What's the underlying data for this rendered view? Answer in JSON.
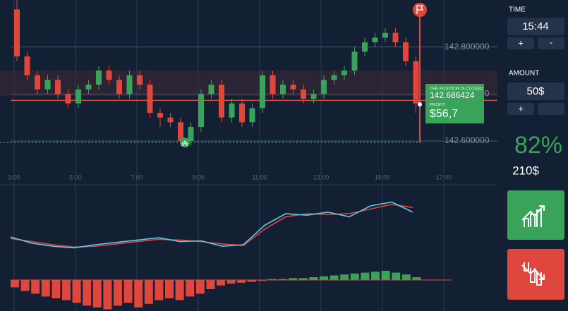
{
  "chart": {
    "type": "candlestick",
    "ylim": [
      142.54,
      142.9
    ],
    "yticks": [
      {
        "value": 142.8,
        "label": "142.800000"
      },
      {
        "value": 142.7,
        "label": "142.700000"
      },
      {
        "value": 142.6,
        "label": "142.600000"
      }
    ],
    "xticks": [
      {
        "value": 3,
        "label": "3:00"
      },
      {
        "value": 5,
        "label": "5:00"
      },
      {
        "value": 7,
        "label": "7:00"
      },
      {
        "value": 9,
        "label": "9:00"
      },
      {
        "value": 11,
        "label": "11:00"
      },
      {
        "value": 13,
        "label": "13:00"
      },
      {
        "value": 15,
        "label": "15:00"
      },
      {
        "value": 17,
        "label": "17:00"
      }
    ],
    "up_color": "#3aa35a",
    "down_color": "#e0473c",
    "candles": [
      [
        142.88,
        142.9,
        142.77,
        142.78
      ],
      [
        142.78,
        142.79,
        142.73,
        142.74
      ],
      [
        142.74,
        142.75,
        142.7,
        142.71
      ],
      [
        142.71,
        142.74,
        142.7,
        142.73
      ],
      [
        142.73,
        142.74,
        142.69,
        142.7
      ],
      [
        142.7,
        142.71,
        142.67,
        142.68
      ],
      [
        142.68,
        142.72,
        142.67,
        142.71
      ],
      [
        142.71,
        142.73,
        142.7,
        142.72
      ],
      [
        142.72,
        142.76,
        142.71,
        142.75
      ],
      [
        142.75,
        142.76,
        142.72,
        142.73
      ],
      [
        142.73,
        142.74,
        142.69,
        142.7
      ],
      [
        142.7,
        142.75,
        142.69,
        142.74
      ],
      [
        142.74,
        142.75,
        142.71,
        142.72
      ],
      [
        142.72,
        142.73,
        142.65,
        142.66
      ],
      [
        142.66,
        142.67,
        142.63,
        142.65
      ],
      [
        142.65,
        142.66,
        142.63,
        142.64
      ],
      [
        142.64,
        142.65,
        142.59,
        142.6
      ],
      [
        142.6,
        142.64,
        142.59,
        142.63
      ],
      [
        142.63,
        142.71,
        142.62,
        142.7
      ],
      [
        142.7,
        142.73,
        142.69,
        142.72
      ],
      [
        142.72,
        142.73,
        142.64,
        142.65
      ],
      [
        142.65,
        142.69,
        142.64,
        142.68
      ],
      [
        142.68,
        142.69,
        142.63,
        142.64
      ],
      [
        142.64,
        142.68,
        142.63,
        142.67
      ],
      [
        142.67,
        142.75,
        142.66,
        142.74
      ],
      [
        142.74,
        142.75,
        142.69,
        142.7
      ],
      [
        142.7,
        142.73,
        142.69,
        142.72
      ],
      [
        142.72,
        142.73,
        142.7,
        142.71
      ],
      [
        142.71,
        142.72,
        142.68,
        142.69
      ],
      [
        142.69,
        142.71,
        142.68,
        142.7
      ],
      [
        142.7,
        142.74,
        142.69,
        142.73
      ],
      [
        142.73,
        142.75,
        142.72,
        142.74
      ],
      [
        142.74,
        142.76,
        142.73,
        142.75
      ],
      [
        142.75,
        142.8,
        142.74,
        142.79
      ],
      [
        142.79,
        142.82,
        142.78,
        142.81
      ],
      [
        142.81,
        142.83,
        142.8,
        142.82
      ],
      [
        142.82,
        142.84,
        142.81,
        142.83
      ],
      [
        142.83,
        142.84,
        142.8,
        142.81
      ],
      [
        142.81,
        142.82,
        142.76,
        142.77
      ],
      [
        142.77,
        142.78,
        142.66,
        142.68
      ]
    ],
    "oscillator": {
      "ylim": [
        0,
        100
      ],
      "series": [
        {
          "color": "#e0473c",
          "values": [
            38,
            34,
            30,
            27,
            28,
            31,
            34,
            37,
            36,
            34,
            31,
            29,
            50,
            66,
            70,
            69,
            70,
            76,
            82,
            78
          ]
        },
        {
          "color": "#5ec8e6",
          "values": [
            40,
            32,
            28,
            26,
            30,
            33,
            36,
            39,
            34,
            35,
            28,
            30,
            55,
            70,
            68,
            72,
            66,
            80,
            85,
            72
          ]
        }
      ]
    },
    "histogram": {
      "values": [
        -8,
        -12,
        -15,
        -18,
        -20,
        -22,
        -25,
        -28,
        -30,
        -32,
        -28,
        -25,
        -30,
        -26,
        -22,
        -20,
        -22,
        -18,
        -15,
        -10,
        -6,
        -4,
        -3,
        -2,
        -1,
        1,
        1,
        2,
        2,
        3,
        4,
        5,
        6,
        7,
        8,
        9,
        10,
        8,
        6,
        3
      ]
    },
    "position": {
      "status": "THE POSITION IS CLOSED",
      "price": {
        "value": 142.686424,
        "label": "142.686424"
      },
      "profit_label": "PROFIT",
      "profit": "$56,7"
    }
  },
  "sidebar": {
    "time_label": "TIME",
    "time": "15:44",
    "amount_label": "AMOUNT",
    "amount": "50$",
    "plus": "+",
    "minus": "-",
    "payout": "82%",
    "payout_amount": "210$"
  }
}
